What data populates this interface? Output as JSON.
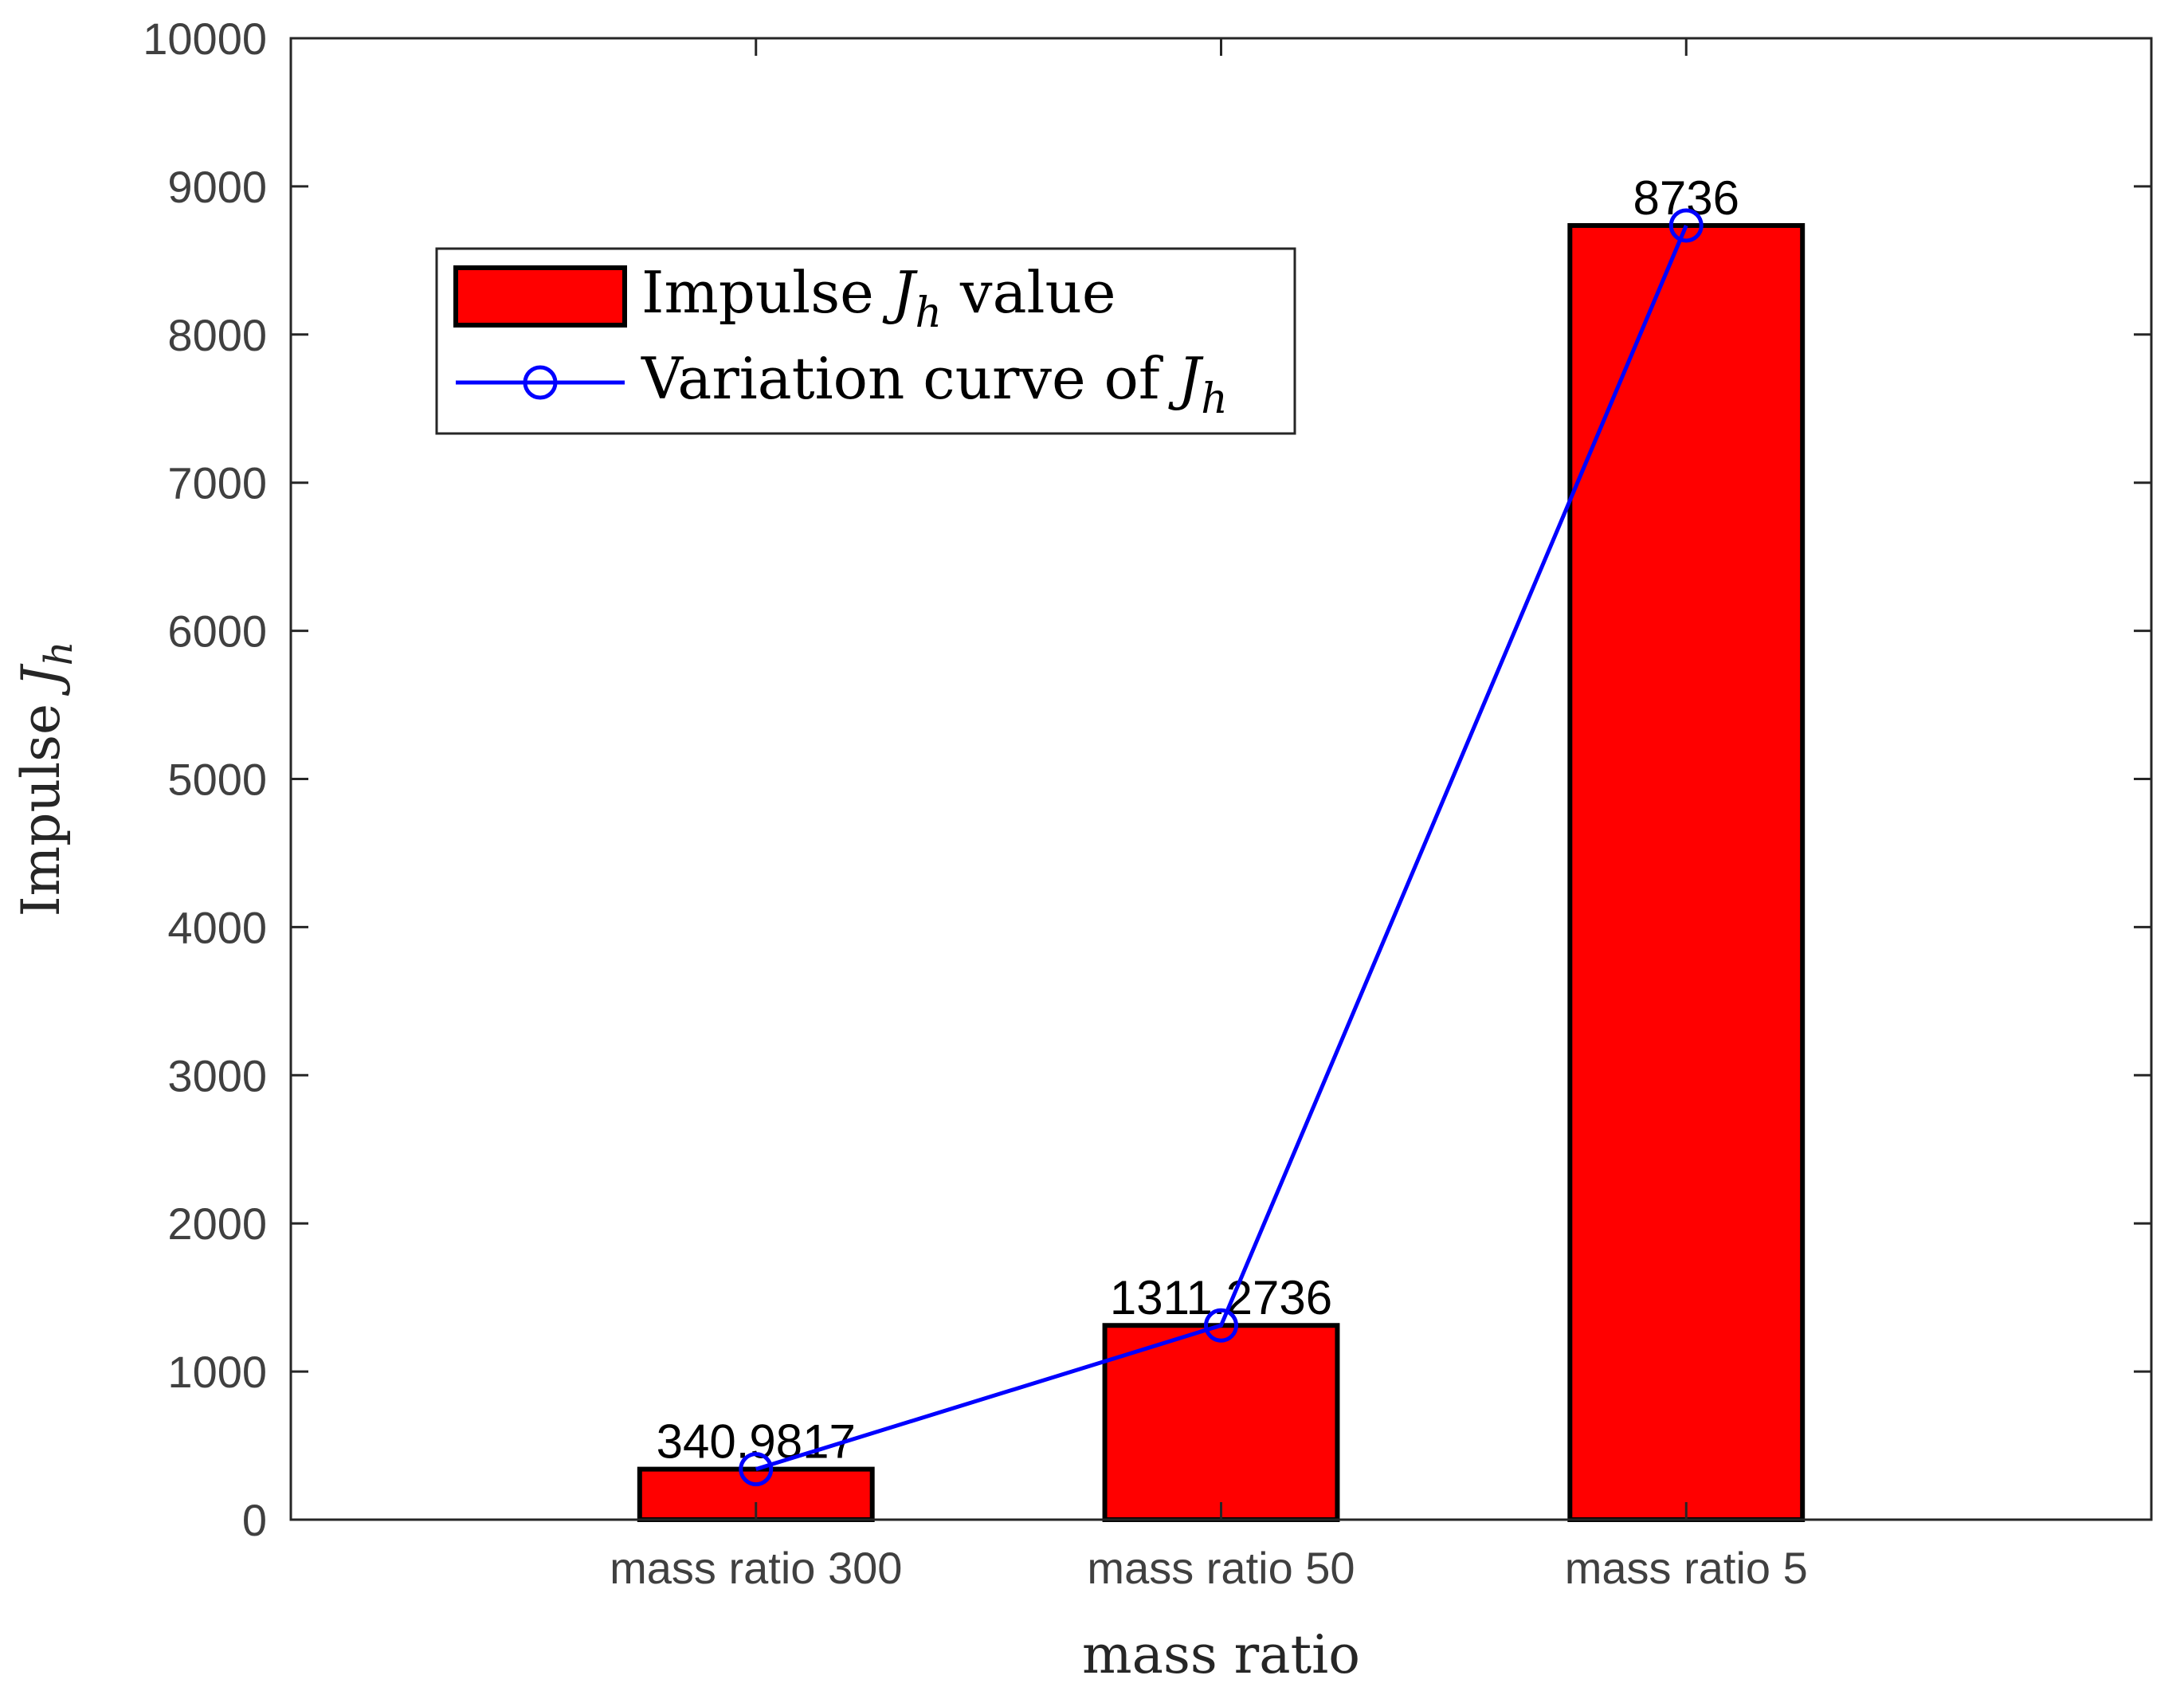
{
  "chart_data": {
    "type": "bar",
    "title": "",
    "categories": [
      "mass ratio 300",
      "mass ratio 50",
      "mass ratio 5"
    ],
    "series": [
      {
        "name": "Impulse J_h value",
        "kind": "bar",
        "values": [
          340.9817,
          1311.2736,
          8736
        ],
        "color": "#ff0000",
        "edge_color": "#000000"
      },
      {
        "name": "Variation curve of J_h",
        "kind": "line",
        "marker": "circle",
        "values": [
          340.9817,
          1311.2736,
          8736
        ],
        "color": "#0000ff"
      }
    ],
    "data_labels": [
      "340.9817",
      "1311.2736",
      "8736"
    ],
    "xlabel": "mass ratio",
    "ylabel": {
      "text": "Impulse ",
      "symbol": "J",
      "subscript": "h"
    },
    "ylim": [
      0,
      10000
    ],
    "yticks": [
      0,
      1000,
      2000,
      3000,
      4000,
      5000,
      6000,
      7000,
      8000,
      9000,
      10000
    ],
    "xlim": [
      0,
      4
    ],
    "grid": false,
    "box": true,
    "legend": {
      "placement": "upper-left",
      "entries": [
        {
          "prefix": "Impulse ",
          "symbol": "J",
          "subscript": "h",
          "suffix": " value"
        },
        {
          "prefix": "Variation curve of ",
          "symbol": "J",
          "subscript": "h",
          "suffix": ""
        }
      ]
    }
  }
}
